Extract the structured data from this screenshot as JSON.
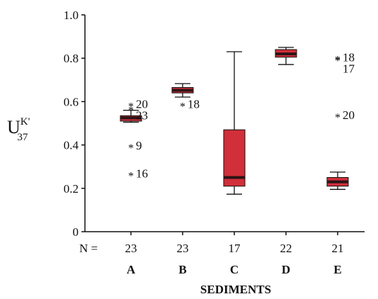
{
  "chart_data": {
    "type": "box",
    "ylabel": {
      "base": "U",
      "sup": "K'",
      "sub": "37"
    },
    "xlabel": "SEDIMENTS",
    "n_label": "N =",
    "categories": [
      "A",
      "B",
      "C",
      "D",
      "E"
    ],
    "n": [
      23,
      23,
      17,
      22,
      21
    ],
    "color": "#d12f3a",
    "median_color": "#2b1416",
    "ylim": [
      0,
      1.0
    ],
    "yticks": [
      0,
      0.2,
      0.4,
      0.6,
      0.8,
      {
        "value": 1.0,
        "label": "1.0"
      }
    ],
    "boxes": [
      {
        "min": 0.505,
        "q1": 0.51,
        "median": 0.525,
        "q3": 0.535,
        "max": 0.56,
        "outliers": [
          {
            "value": 0.59,
            "label": "20"
          },
          {
            "value": 0.572,
            "label": "23"
          },
          {
            "value": 0.399,
            "label": "9"
          },
          {
            "value": 0.27,
            "label": "16"
          }
        ]
      },
      {
        "min": 0.621,
        "q1": 0.64,
        "median": 0.652,
        "q3": 0.665,
        "max": 0.683,
        "outliers": [
          {
            "value": 0.59,
            "label": "18"
          }
        ]
      },
      {
        "min": 0.173,
        "q1": 0.21,
        "median": 0.25,
        "q3": 0.47,
        "max": 0.83,
        "outliers": []
      },
      {
        "min": 0.771,
        "q1": 0.805,
        "median": 0.82,
        "q3": 0.84,
        "max": 0.85,
        "outliers": []
      },
      {
        "min": 0.195,
        "q1": 0.21,
        "median": 0.23,
        "q3": 0.25,
        "max": 0.275,
        "outliers": [
          {
            "value": 0.805,
            "label": "18"
          },
          {
            "value": 0.8,
            "label": "17"
          },
          {
            "value": 0.54,
            "label": "20"
          }
        ]
      }
    ]
  }
}
